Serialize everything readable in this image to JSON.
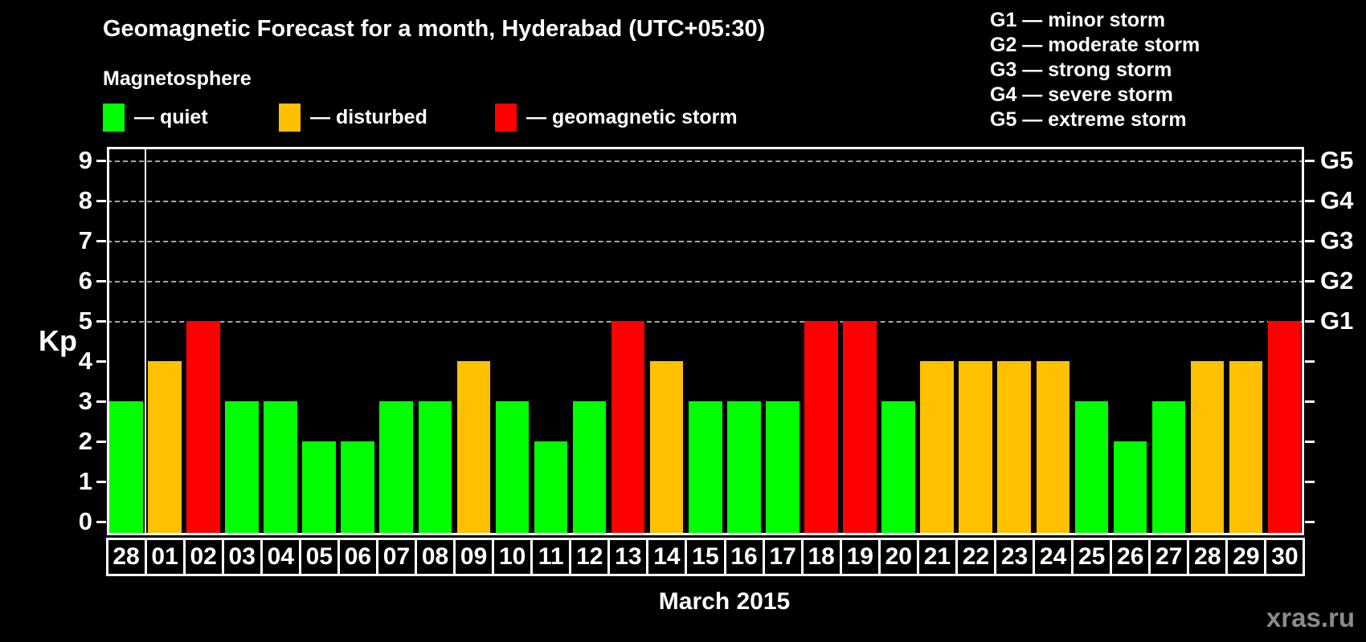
{
  "header": {
    "title": "Geomagnetic Forecast for a month, Hyderabad (UTC+05:30)",
    "magnetosphere_heading": "Magnetosphere",
    "legend": [
      {
        "name": "quiet",
        "label": "— quiet",
        "color": "#00ff00"
      },
      {
        "name": "disturbed",
        "label": "— disturbed",
        "color": "#ffc000"
      },
      {
        "name": "geomagnetic-storm",
        "label": "— geomagnetic storm",
        "color": "#ff0000"
      }
    ],
    "g_scale_legend": [
      "G1 — minor storm",
      "G2 — moderate storm",
      "G3 — strong storm",
      "G4 — severe storm",
      "G5 — extreme storm"
    ]
  },
  "chart_data": {
    "type": "bar",
    "title": "Geomagnetic Forecast for a month, Hyderabad (UTC+05:30)",
    "xlabel": "March 2015",
    "ylabel": "Kp",
    "ylim": [
      0,
      9.3
    ],
    "yticks": [
      0,
      1,
      2,
      3,
      4,
      5,
      6,
      7,
      8,
      9
    ],
    "gridlines_at_kp": [
      5,
      6,
      7,
      8,
      9
    ],
    "grid": "dashed, right-axis storm levels only",
    "legend_position": "top",
    "right_axis_labels": [
      {
        "kp": 5,
        "label": "G1"
      },
      {
        "kp": 6,
        "label": "G2"
      },
      {
        "kp": 7,
        "label": "G3"
      },
      {
        "kp": 8,
        "label": "G4"
      },
      {
        "kp": 9,
        "label": "G5"
      }
    ],
    "palette": {
      "quiet": "#00ff00",
      "disturbed": "#ffc000",
      "storm": "#ff0000"
    },
    "categories": [
      "28",
      "01",
      "02",
      "03",
      "04",
      "05",
      "06",
      "07",
      "08",
      "09",
      "10",
      "11",
      "12",
      "13",
      "14",
      "15",
      "16",
      "17",
      "18",
      "19",
      "20",
      "21",
      "22",
      "23",
      "24",
      "25",
      "26",
      "27",
      "28",
      "29",
      "30"
    ],
    "values": [
      3,
      4,
      5,
      3,
      3,
      2,
      2,
      3,
      3,
      4,
      3,
      2,
      3,
      5,
      4,
      3,
      3,
      3,
      5,
      5,
      3,
      4,
      4,
      4,
      4,
      3,
      2,
      3,
      4,
      4,
      5
    ],
    "statuses": [
      "quiet",
      "disturbed",
      "storm",
      "quiet",
      "quiet",
      "quiet",
      "quiet",
      "quiet",
      "quiet",
      "disturbed",
      "quiet",
      "quiet",
      "quiet",
      "storm",
      "disturbed",
      "quiet",
      "quiet",
      "quiet",
      "storm",
      "storm",
      "quiet",
      "disturbed",
      "disturbed",
      "disturbed",
      "disturbed",
      "quiet",
      "quiet",
      "quiet",
      "disturbed",
      "disturbed",
      "storm"
    ],
    "separator_after_index": 0
  },
  "footer": {
    "watermark": "xras.ru"
  }
}
